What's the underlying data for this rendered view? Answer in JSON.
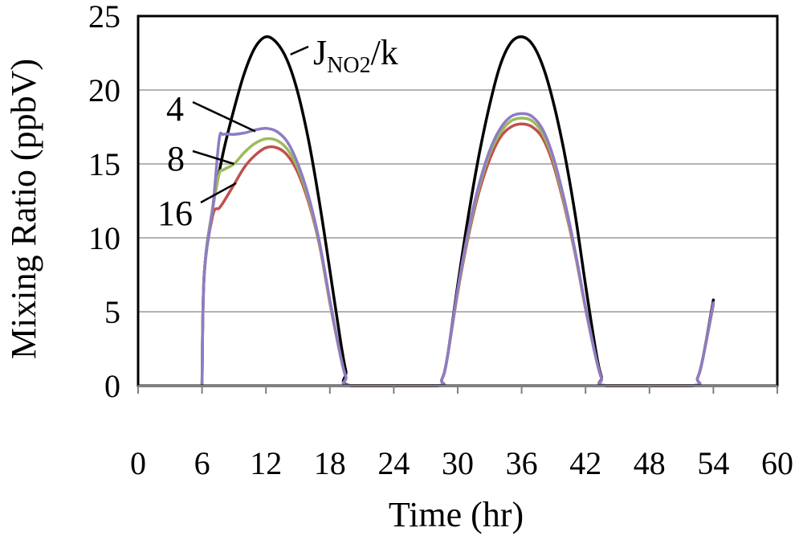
{
  "chart_data": {
    "type": "line",
    "title": "",
    "xlabel": "Time (hr)",
    "ylabel": "Mixing Ratio (ppbV)",
    "xlim": [
      0,
      60
    ],
    "ylim": [
      0,
      25
    ],
    "xticks": [
      0,
      6,
      12,
      18,
      24,
      30,
      36,
      42,
      48,
      54,
      60
    ],
    "yticks": [
      0,
      5,
      10,
      15,
      20,
      25
    ],
    "grid": "horizontal",
    "legend": "none",
    "annotations": [
      {
        "text_main": "J",
        "text_sub": "NO2",
        "text_tail": "/k",
        "points_to": {
          "x": 14.3,
          "y": 22.4
        }
      },
      {
        "text": "4",
        "points_to": {
          "x": 11.0,
          "y": 17.2
        }
      },
      {
        "text": "8",
        "points_to": {
          "x": 9.0,
          "y": 15.0
        }
      },
      {
        "text": "16",
        "points_to": {
          "x": 9.2,
          "y": 13.7
        }
      }
    ],
    "series": [
      {
        "label_text": "J_NO2/k",
        "color": "#000000",
        "points": [
          [
            6,
            0
          ],
          [
            6.2,
            7.5
          ],
          [
            7,
            12
          ],
          [
            8,
            15.8
          ],
          [
            9,
            18.7
          ],
          [
            10,
            21.2
          ],
          [
            11,
            22.9
          ],
          [
            12,
            23.6
          ],
          [
            13,
            23.2
          ],
          [
            14,
            22.0
          ],
          [
            15,
            19.8
          ],
          [
            16,
            16.6
          ],
          [
            17,
            12.5
          ],
          [
            18,
            7.8
          ],
          [
            19,
            3.0
          ],
          [
            19.5,
            1.0
          ],
          [
            20,
            0
          ],
          [
            28,
            0
          ],
          [
            28.5,
            0.4
          ],
          [
            29,
            1.8
          ],
          [
            30,
            6.8
          ],
          [
            31,
            11.5
          ],
          [
            32,
            15.6
          ],
          [
            33,
            19.0
          ],
          [
            34,
            21.7
          ],
          [
            35,
            23.2
          ],
          [
            36,
            23.6
          ],
          [
            37,
            23.1
          ],
          [
            38,
            21.6
          ],
          [
            39,
            19.1
          ],
          [
            40,
            15.8
          ],
          [
            41,
            11.7
          ],
          [
            42,
            6.8
          ],
          [
            43,
            2.2
          ],
          [
            43.5,
            0.6
          ],
          [
            44,
            0
          ],
          [
            52,
            0
          ],
          [
            52.5,
            0.5
          ],
          [
            53,
            1.8
          ],
          [
            54,
            5.8
          ]
        ]
      },
      {
        "label_text": "4",
        "color": "#8e7cc3",
        "points": [
          [
            6,
            0
          ],
          [
            6.2,
            7.5
          ],
          [
            7,
            12
          ],
          [
            7.6,
            16.6
          ],
          [
            8,
            17.0
          ],
          [
            9,
            17.0
          ],
          [
            10,
            17.1
          ],
          [
            11,
            17.3
          ],
          [
            12,
            17.4
          ],
          [
            13,
            17.2
          ],
          [
            14,
            16.5
          ],
          [
            15,
            15.0
          ],
          [
            16,
            12.8
          ],
          [
            17,
            9.8
          ],
          [
            18,
            5.8
          ],
          [
            19,
            2.0
          ],
          [
            19.5,
            0.6
          ],
          [
            20,
            0
          ],
          [
            28,
            0
          ],
          [
            28.5,
            0.4
          ],
          [
            29,
            1.8
          ],
          [
            30,
            6.5
          ],
          [
            31,
            10.5
          ],
          [
            32,
            13.6
          ],
          [
            33,
            15.9
          ],
          [
            34,
            17.4
          ],
          [
            35,
            18.2
          ],
          [
            36,
            18.4
          ],
          [
            37,
            18.2
          ],
          [
            38,
            17.3
          ],
          [
            39,
            15.4
          ],
          [
            40,
            12.6
          ],
          [
            41,
            9.2
          ],
          [
            42,
            5.3
          ],
          [
            43,
            1.8
          ],
          [
            43.5,
            0.5
          ],
          [
            44,
            0
          ],
          [
            52,
            0
          ],
          [
            52.5,
            0.5
          ],
          [
            53,
            1.8
          ],
          [
            54,
            5.6
          ]
        ]
      },
      {
        "label_text": "8",
        "color": "#9bbb59",
        "points": [
          [
            6,
            0
          ],
          [
            6.2,
            7.5
          ],
          [
            7,
            12
          ],
          [
            7.6,
            14.3
          ],
          [
            8,
            14.6
          ],
          [
            9,
            15.0
          ],
          [
            10,
            15.8
          ],
          [
            11,
            16.4
          ],
          [
            12,
            16.7
          ],
          [
            13,
            16.6
          ],
          [
            14,
            16.0
          ],
          [
            15,
            14.7
          ],
          [
            16,
            12.6
          ],
          [
            17,
            9.7
          ],
          [
            18,
            5.7
          ],
          [
            19,
            2.0
          ],
          [
            19.5,
            0.6
          ],
          [
            20,
            0
          ],
          [
            28,
            0
          ],
          [
            28.5,
            0.4
          ],
          [
            29,
            1.8
          ],
          [
            30,
            6.4
          ],
          [
            31,
            10.3
          ],
          [
            32,
            13.4
          ],
          [
            33,
            15.7
          ],
          [
            34,
            17.1
          ],
          [
            35,
            17.9
          ],
          [
            36,
            18.1
          ],
          [
            37,
            17.9
          ],
          [
            38,
            17.0
          ],
          [
            39,
            15.2
          ],
          [
            40,
            12.4
          ],
          [
            41,
            9.1
          ],
          [
            42,
            5.3
          ],
          [
            43,
            1.8
          ],
          [
            43.5,
            0.5
          ],
          [
            44,
            0
          ],
          [
            52,
            0
          ],
          [
            52.5,
            0.5
          ],
          [
            53,
            1.8
          ],
          [
            54,
            5.6
          ]
        ]
      },
      {
        "label_text": "16",
        "color": "#c0504d",
        "points": [
          [
            6,
            0
          ],
          [
            6.2,
            7.5
          ],
          [
            7,
            11.5
          ],
          [
            7.6,
            12.0
          ],
          [
            8,
            12.4
          ],
          [
            9,
            13.6
          ],
          [
            10,
            14.8
          ],
          [
            11,
            15.6
          ],
          [
            12,
            16.1
          ],
          [
            13,
            16.1
          ],
          [
            14,
            15.6
          ],
          [
            15,
            14.4
          ],
          [
            16,
            12.4
          ],
          [
            17,
            9.6
          ],
          [
            18,
            5.6
          ],
          [
            19,
            2.0
          ],
          [
            19.5,
            0.6
          ],
          [
            20,
            0
          ],
          [
            28,
            0
          ],
          [
            28.5,
            0.4
          ],
          [
            29,
            1.8
          ],
          [
            30,
            6.3
          ],
          [
            31,
            10.1
          ],
          [
            32,
            13.1
          ],
          [
            33,
            15.3
          ],
          [
            34,
            16.8
          ],
          [
            35,
            17.5
          ],
          [
            36,
            17.7
          ],
          [
            37,
            17.5
          ],
          [
            38,
            16.7
          ],
          [
            39,
            14.9
          ],
          [
            40,
            12.2
          ],
          [
            41,
            9.0
          ],
          [
            42,
            5.2
          ],
          [
            43,
            1.8
          ],
          [
            43.5,
            0.5
          ],
          [
            44,
            0
          ],
          [
            52,
            0
          ],
          [
            52.5,
            0.5
          ],
          [
            53,
            1.8
          ],
          [
            54,
            5.5
          ]
        ]
      }
    ]
  }
}
